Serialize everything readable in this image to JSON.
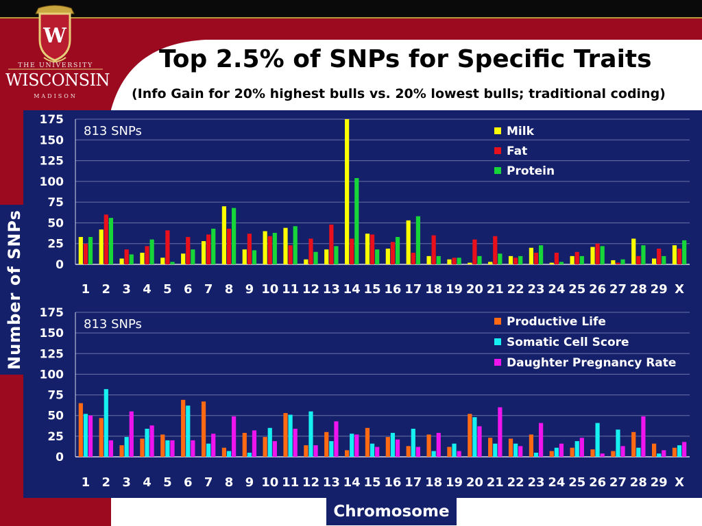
{
  "header": {
    "title": "Top 2.5% of SNPs for Specific Traits",
    "subtitle": "(Info Gain for 20% highest bulls vs. 20% lowest bulls; traditional coding)"
  },
  "logo": {
    "line1": "THE UNIVERSITY",
    "line2": "WISCONSIN",
    "line3": "MADISON",
    "crest_letter": "W"
  },
  "y_axis_title": "Number of SNPs",
  "x_axis_title": "Chromosome",
  "colors": {
    "maroon": "#9b0a1e",
    "navy": "#15206b",
    "milk": "#ffff00",
    "fat": "#e8101a",
    "protein": "#16d63a",
    "productive_life": "#ff6a13",
    "somatic_cell_score": "#17f0f0",
    "daughter_pregnancy_rate": "#ee14ee"
  },
  "chart_data": [
    {
      "type": "bar",
      "annotation": "813 SNPs",
      "categories": [
        "1",
        "2",
        "3",
        "4",
        "5",
        "6",
        "7",
        "8",
        "9",
        "10",
        "11",
        "12",
        "13",
        "14",
        "15",
        "16",
        "17",
        "18",
        "19",
        "20",
        "21",
        "22",
        "23",
        "24",
        "25",
        "26",
        "27",
        "28",
        "29",
        "X"
      ],
      "ylim": [
        0,
        175
      ],
      "yticks": [
        0,
        25,
        50,
        75,
        100,
        125,
        150,
        175
      ],
      "grid": true,
      "legend": "top-right",
      "series": [
        {
          "name": "Milk",
          "color": "#ffff00",
          "values": [
            33,
            42,
            7,
            14,
            8,
            13,
            28,
            70,
            18,
            40,
            44,
            6,
            18,
            175,
            37,
            19,
            53,
            10,
            6,
            2,
            3,
            10,
            20,
            2,
            10,
            21,
            5,
            31,
            7,
            23
          ]
        },
        {
          "name": "Fat",
          "color": "#e8101a",
          "values": [
            25,
            60,
            18,
            22,
            41,
            33,
            36,
            43,
            37,
            34,
            23,
            31,
            48,
            31,
            36,
            27,
            14,
            35,
            8,
            30,
            34,
            8,
            14,
            14,
            15,
            25,
            2,
            10,
            19,
            19
          ]
        },
        {
          "name": "Protein",
          "color": "#16d63a",
          "values": [
            33,
            56,
            12,
            30,
            3,
            18,
            43,
            68,
            17,
            38,
            46,
            15,
            22,
            104,
            18,
            33,
            58,
            10,
            8,
            10,
            13,
            10,
            23,
            3,
            10,
            22,
            6,
            23,
            10,
            29
          ]
        }
      ]
    },
    {
      "type": "bar",
      "annotation": "813 SNPs",
      "categories": [
        "1",
        "2",
        "3",
        "4",
        "5",
        "6",
        "7",
        "8",
        "9",
        "10",
        "11",
        "12",
        "13",
        "14",
        "15",
        "16",
        "17",
        "18",
        "19",
        "20",
        "21",
        "22",
        "23",
        "24",
        "25",
        "26",
        "27",
        "28",
        "29",
        "X"
      ],
      "ylim": [
        0,
        175
      ],
      "yticks": [
        0,
        25,
        50,
        75,
        100,
        125,
        150,
        175
      ],
      "grid": true,
      "legend": "top-right",
      "series": [
        {
          "name": "Productive Life",
          "color": "#ff6a13",
          "values": [
            65,
            47,
            14,
            22,
            27,
            69,
            67,
            11,
            29,
            24,
            53,
            14,
            30,
            8,
            35,
            24,
            13,
            27,
            12,
            52,
            23,
            22,
            27,
            7,
            11,
            9,
            7,
            30,
            16,
            11
          ]
        },
        {
          "name": "Somatic Cell Score",
          "color": "#17f0f0",
          "values": [
            52,
            82,
            24,
            34,
            20,
            62,
            16,
            7,
            5,
            35,
            51,
            55,
            19,
            28,
            16,
            29,
            34,
            7,
            16,
            48,
            16,
            16,
            5,
            11,
            19,
            41,
            33,
            11,
            4,
            14
          ]
        },
        {
          "name": "Daughter Pregnancy Rate",
          "color": "#ee14ee",
          "values": [
            50,
            20,
            55,
            38,
            20,
            20,
            28,
            49,
            32,
            19,
            34,
            14,
            43,
            27,
            12,
            21,
            12,
            29,
            7,
            37,
            60,
            13,
            41,
            16,
            23,
            4,
            13,
            49,
            8,
            18
          ]
        }
      ]
    }
  ]
}
